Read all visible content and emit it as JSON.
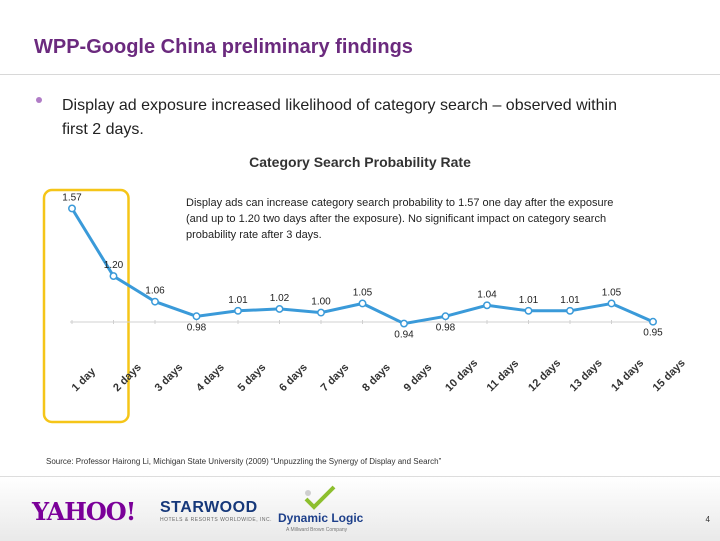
{
  "slide": {
    "title": "WPP-Google China preliminary findings",
    "bullet": "Display ad exposure increased likelihood of category search – observed within first 2 days.",
    "source": "Source: Professor Hairong Li, Michigan State University (2009) “Unpuzzling the Synergy of Display and Search”",
    "page_number": "4"
  },
  "logos": {
    "yahoo": "YAHOO!",
    "starwood": "STARWOOD",
    "starwood_sub": "HOTELS & RESORTS WORLDWIDE, INC.",
    "dynamic_logic": "Dynamic Logic",
    "dynamic_logic_sub": "A Millward Brown Company"
  },
  "chart_data": {
    "type": "line",
    "title": "Category Search Probability Rate",
    "annotation": "Display ads can increase category search probability to 1.57 one day after the exposure (and up to 1.20 two days after the exposure). No significant impact on category search probability rate after 3 days.",
    "categories": [
      "1 day",
      "2 days",
      "3 days",
      "4 days",
      "5 days",
      "6 days",
      "7 days",
      "8 days",
      "9 days",
      "10 days",
      "11 days",
      "12 days",
      "13 days",
      "14 days",
      "15 days"
    ],
    "values": [
      1.57,
      1.2,
      1.06,
      0.98,
      1.01,
      1.02,
      1.0,
      1.05,
      0.94,
      0.98,
      1.04,
      1.01,
      1.01,
      1.05,
      0.95
    ],
    "labels": [
      "1.57",
      "1.20",
      "1.06",
      "0.98",
      "1.01",
      "1.02",
      "1.00",
      "1.05",
      "0.94",
      "0.98",
      "1.04",
      "1.01",
      "1.01",
      "1.05",
      "0.95"
    ],
    "ylim": [
      0.85,
      1.6
    ],
    "highlighted_categories": [
      "1 day",
      "2 days"
    ],
    "colors": {
      "line": "#3a9ad9",
      "marker_fill": "#ffffff",
      "highlight_box": "#f5c518",
      "label": "#222222"
    }
  }
}
